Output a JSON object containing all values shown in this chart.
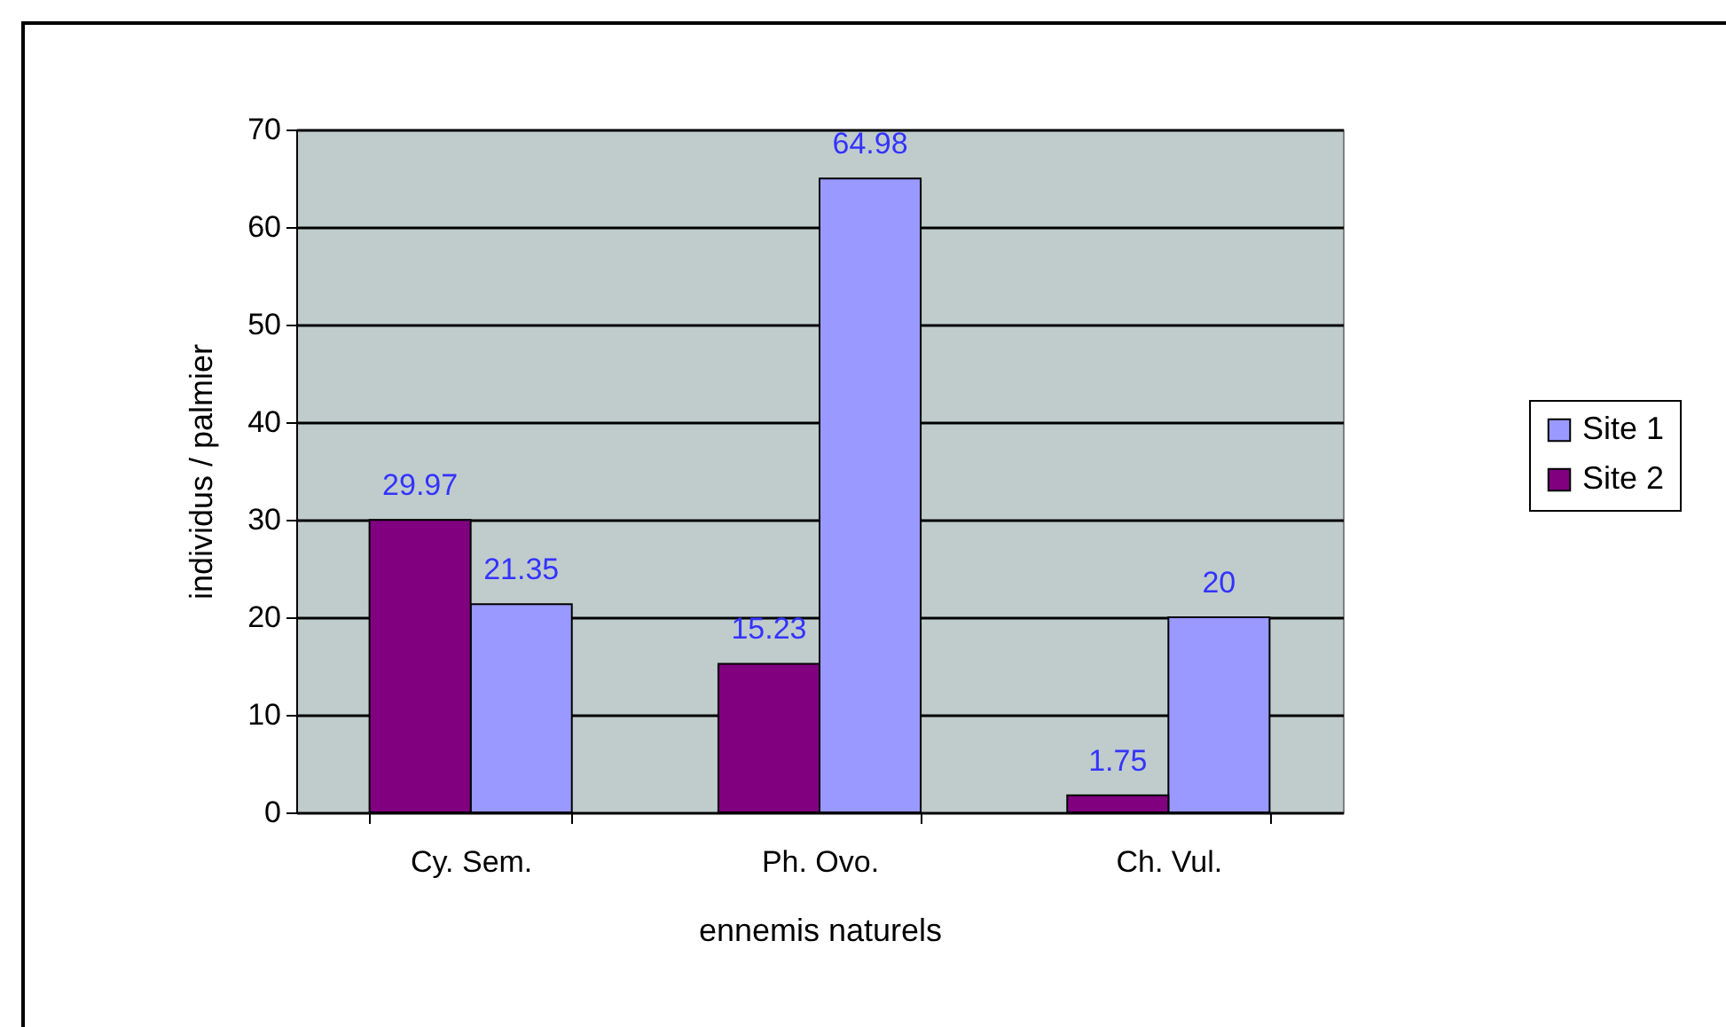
{
  "chart_data": {
    "type": "bar",
    "xlabel": "ennemis naturels",
    "ylabel": "individus / palmier",
    "categories": [
      "Cy. Sem.",
      "Ph. Ovo.",
      "Ch. Vul."
    ],
    "series": [
      {
        "name": "Site 1",
        "color": "#9999ff",
        "values": [
          21.35,
          64.98,
          20
        ]
      },
      {
        "name": "Site 2",
        "color": "#800080",
        "values": [
          29.97,
          15.23,
          1.75
        ]
      }
    ],
    "ylim": [
      0,
      70
    ],
    "yticks": [
      0,
      10,
      20,
      30,
      40,
      50,
      60,
      70
    ],
    "grid": "y",
    "legend": "right",
    "data_labels": true
  }
}
